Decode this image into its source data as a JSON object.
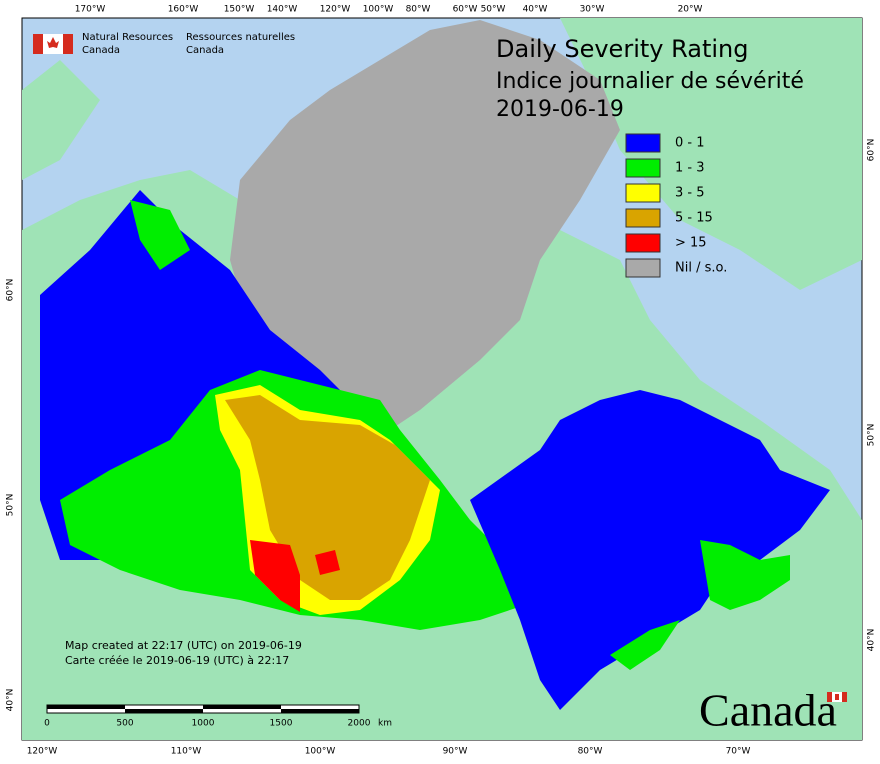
{
  "header": {
    "agency_en": [
      "Natural Resources",
      "Canada"
    ],
    "agency_fr": [
      "Ressources naturelles",
      "Canada"
    ]
  },
  "title": {
    "line1": "Daily Severity Rating",
    "line2": "Indice journalier de sévérité",
    "date": "2019-06-19"
  },
  "legend": [
    {
      "label": "0 - 1",
      "color": "#0000ff"
    },
    {
      "label": "1 - 3",
      "color": "#00ee00"
    },
    {
      "label": "3 - 5",
      "color": "#ffff00"
    },
    {
      "label": "5 - 15",
      "color": "#d9a400"
    },
    {
      "label": "> 15",
      "color": "#ff0000"
    },
    {
      "label": "Nil / s.o.",
      "color": "#a9a9a9"
    }
  ],
  "graticule": {
    "top": [
      "170°W",
      "160°W",
      "150°W",
      "140°W",
      "120°W",
      "100°W",
      "80°W",
      "60°W",
      "50°W",
      "40°W",
      "30°W",
      "20°W"
    ],
    "bottom": [
      "120°W",
      "110°W",
      "100°W",
      "90°W",
      "80°W",
      "70°W"
    ],
    "left": [
      "60°N",
      "50°N",
      "40°N"
    ],
    "right": [
      "60°N",
      "50°N",
      "40°N"
    ]
  },
  "footer": {
    "created_en": "Map created at 22:17 (UTC) on 2019-06-19",
    "created_fr": "Carte créée le 2019-06-19 (UTC) à 22:17"
  },
  "scale": {
    "ticks": [
      "0",
      "500",
      "1000",
      "1500",
      "2000"
    ],
    "unit": "km"
  },
  "wordmark": "Canada"
}
